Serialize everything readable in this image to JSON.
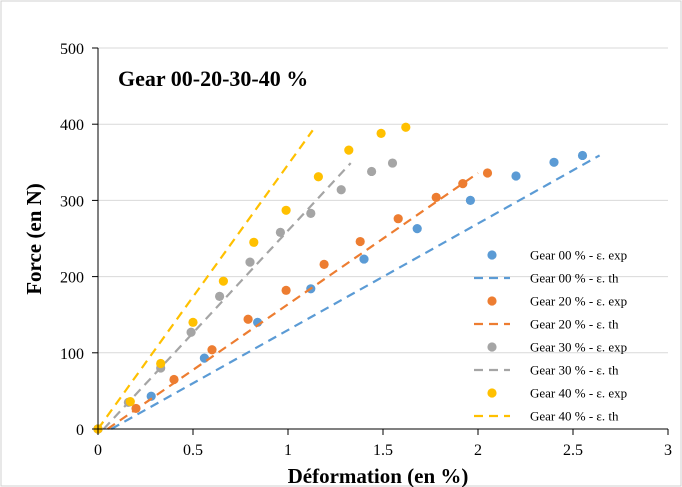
{
  "chart_data": {
    "type": "scatter",
    "title": "Gear 00-20-30-40 %",
    "xlabel": "Déformation (en %)",
    "ylabel": "Force (en N)",
    "xlim": [
      0,
      3
    ],
    "ylim": [
      0,
      500
    ],
    "xticks": [
      0,
      0.5,
      1,
      1.5,
      2,
      2.5,
      3
    ],
    "xtick_labels": [
      "0",
      "0.5",
      "1",
      "1.5",
      "2",
      "2.5",
      "3"
    ],
    "yticks": [
      0,
      100,
      200,
      300,
      400,
      500
    ],
    "ytick_labels": [
      "0",
      "100",
      "200",
      "300",
      "400",
      "500"
    ],
    "grid": "horizontal",
    "legend_position": "right",
    "series": [
      {
        "name": "Gear 00 % - ε. exp",
        "kind": "scatter",
        "color": "#5B9BD5",
        "x": [
          0,
          0.28,
          0.56,
          0.84,
          1.12,
          1.4,
          1.68,
          1.96,
          2.2,
          2.4,
          2.55
        ],
        "y": [
          0,
          43,
          93,
          140,
          184,
          223,
          263,
          300,
          332,
          350,
          359
        ]
      },
      {
        "name": "Gear 00 % - ε. th",
        "kind": "dashed-line",
        "color": "#5B9BD5",
        "x": [
          0.07,
          2.64
        ],
        "y": [
          0,
          359
        ]
      },
      {
        "name": "Gear 20 % - ε. exp",
        "kind": "scatter",
        "color": "#ED7D31",
        "x": [
          0,
          0.2,
          0.4,
          0.6,
          0.79,
          0.99,
          1.19,
          1.38,
          1.58,
          1.78,
          1.92,
          2.05
        ],
        "y": [
          0,
          27,
          65,
          104,
          144,
          182,
          216,
          246,
          276,
          304,
          322,
          336
        ]
      },
      {
        "name": "Gear 20 % - ε. th",
        "kind": "dashed-line",
        "color": "#ED7D31",
        "x": [
          0.05,
          2.0
        ],
        "y": [
          0,
          336
        ]
      },
      {
        "name": "Gear 30 % - ε. exp",
        "kind": "scatter",
        "color": "#A5A5A5",
        "x": [
          0,
          0.16,
          0.33,
          0.49,
          0.64,
          0.8,
          0.96,
          1.12,
          1.28,
          1.44,
          1.55
        ],
        "y": [
          0,
          35,
          80,
          127,
          174,
          219,
          258,
          283,
          314,
          338,
          349
        ]
      },
      {
        "name": "Gear 30 % - ε. th",
        "kind": "dashed-line",
        "color": "#A5A5A5",
        "x": [
          0.03,
          1.33
        ],
        "y": [
          0,
          349
        ]
      },
      {
        "name": "Gear 40 % - ε. exp",
        "kind": "scatter",
        "color": "#FFC000",
        "x": [
          0,
          0.17,
          0.33,
          0.5,
          0.66,
          0.82,
          0.99,
          1.16,
          1.32,
          1.49,
          1.62
        ],
        "y": [
          0,
          36,
          86,
          140,
          194,
          245,
          287,
          331,
          366,
          388,
          396
        ]
      },
      {
        "name": "Gear 40 % - ε. th",
        "kind": "dashed-line",
        "color": "#FFC000",
        "x": [
          0.0,
          1.13
        ],
        "y": [
          0,
          392
        ]
      }
    ]
  }
}
